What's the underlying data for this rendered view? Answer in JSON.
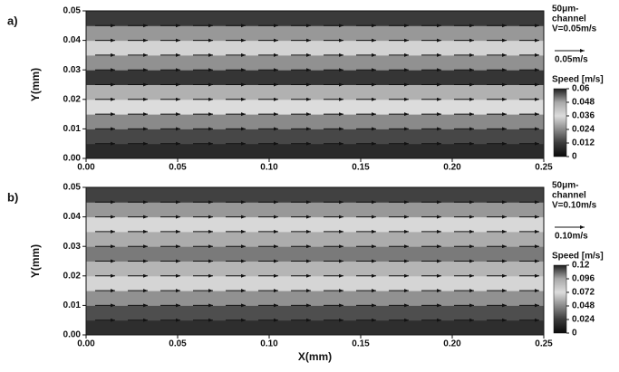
{
  "chart_data": [
    {
      "type": "heatmap",
      "panel_label": "a)",
      "annotations": [
        "50μm-",
        "channel",
        "V=0.05m/s"
      ],
      "reference_vector": "0.05m/s",
      "colorbar_label": "Speed [m/s]",
      "ylabel": "Y(mm)",
      "xlim": [
        0,
        0.25
      ],
      "ylim": [
        0,
        0.05
      ],
      "xticks": [
        {
          "value": 0,
          "label": "0.00"
        },
        {
          "value": 0.05,
          "label": "0.05"
        },
        {
          "value": 0.1,
          "label": "0.10"
        },
        {
          "value": 0.15,
          "label": "0.15"
        },
        {
          "value": 0.2,
          "label": "0.20"
        },
        {
          "value": 0.25,
          "label": "0.25"
        }
      ],
      "yticks": [
        {
          "value": 0,
          "label": "0.00"
        },
        {
          "value": 0.01,
          "label": "0.01"
        },
        {
          "value": 0.02,
          "label": "0.02"
        },
        {
          "value": 0.03,
          "label": "0.03"
        },
        {
          "value": 0.04,
          "label": "0.04"
        },
        {
          "value": 0.05,
          "label": "0.05"
        }
      ],
      "clim": [
        0,
        0.06
      ],
      "cticks": [
        0,
        0.012,
        0.024,
        0.036,
        0.048,
        0.06
      ],
      "colormap": [
        "#0a0a0a",
        "#3a3a3a",
        "#8a8a8a",
        "#dcdcdc",
        "#a8a8a8",
        "#1e1e1e"
      ],
      "y": [
        0.0025,
        0.0075,
        0.0125,
        0.0175,
        0.0225,
        0.0275,
        0.0325,
        0.0375,
        0.0425,
        0.0475
      ],
      "values": [
        0.008,
        0.014,
        0.024,
        0.036,
        0.046,
        0.058,
        0.05,
        0.038,
        0.026,
        0.012
      ]
    },
    {
      "type": "heatmap",
      "panel_label": "b)",
      "annotations": [
        "50μm-",
        "channel",
        "V=0.10m/s"
      ],
      "reference_vector": "0.10m/s",
      "colorbar_label": "Speed [m/s]",
      "ylabel": "Y(mm)",
      "xlabel": "X(mm)",
      "xlim": [
        0,
        0.25
      ],
      "ylim": [
        0,
        0.05
      ],
      "xticks": [
        {
          "value": 0,
          "label": "0.00"
        },
        {
          "value": 0.05,
          "label": "0.05"
        },
        {
          "value": 0.1,
          "label": "0.10"
        },
        {
          "value": 0.15,
          "label": "0.15"
        },
        {
          "value": 0.2,
          "label": "0.20"
        },
        {
          "value": 0.25,
          "label": "0.25"
        }
      ],
      "yticks": [
        {
          "value": 0,
          "label": "0.00"
        },
        {
          "value": 0.01,
          "label": "0.01"
        },
        {
          "value": 0.02,
          "label": "0.02"
        },
        {
          "value": 0.03,
          "label": "0.03"
        },
        {
          "value": 0.04,
          "label": "0.04"
        },
        {
          "value": 0.05,
          "label": "0.05"
        }
      ],
      "clim": [
        0,
        0.12
      ],
      "cticks": [
        0,
        0.024,
        0.048,
        0.072,
        0.096,
        0.12
      ],
      "colormap": [
        "#0a0a0a",
        "#3a3a3a",
        "#8a8a8a",
        "#dcdcdc",
        "#a8a8a8",
        "#1e1e1e"
      ],
      "y": [
        0.0025,
        0.0075,
        0.0125,
        0.0175,
        0.0225,
        0.0275,
        0.0325,
        0.0375,
        0.0425,
        0.0475
      ],
      "values": [
        0.018,
        0.03,
        0.05,
        0.07,
        0.09,
        0.104,
        0.094,
        0.074,
        0.052,
        0.026
      ]
    }
  ]
}
